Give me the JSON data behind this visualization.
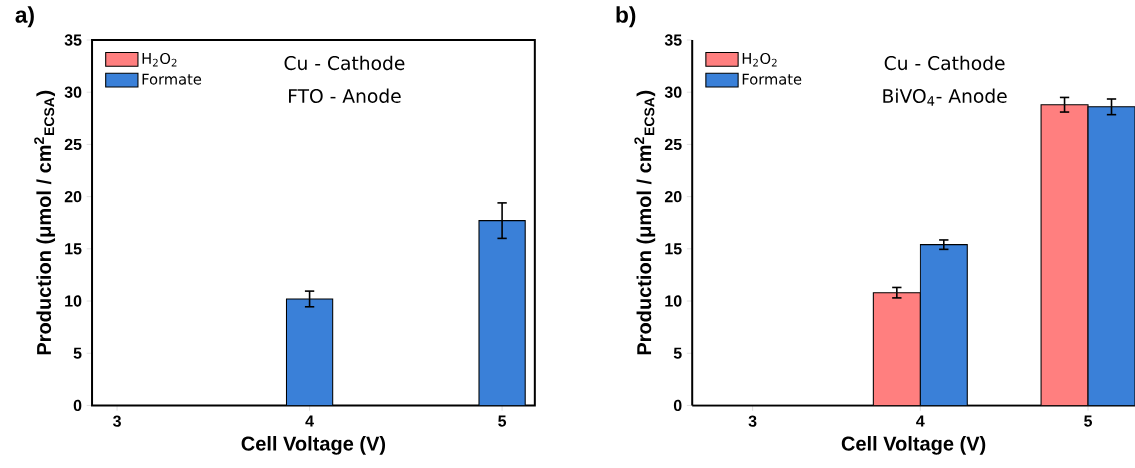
{
  "chart_data": [
    {
      "type": "bar",
      "title": "a)",
      "xlabel": "Cell Voltage (V)",
      "ylabel": "Production (μmol / cm$^{2}$$_{ECSA}$)",
      "categories": [
        "3",
        "4",
        "5"
      ],
      "series": [
        {
          "name": "H$_{2}$O$_{2}$",
          "color": "#ff7f7f",
          "values": [
            null,
            null,
            null
          ]
        },
        {
          "name": "Formate",
          "color": "#3a80d8",
          "values": [
            null,
            10.2,
            17.7
          ],
          "errors": [
            null,
            0.75,
            1.7
          ]
        }
      ],
      "ylim": [
        0,
        35
      ],
      "yticks": [
        0,
        5,
        10,
        15,
        20,
        25,
        30,
        35
      ],
      "legend": "top left",
      "grid": false,
      "annotations": [
        "Cu - Cathode",
        "FTO - Anode"
      ]
    },
    {
      "type": "bar",
      "title": "b)",
      "xlabel": "Cell Voltage (V)",
      "ylabel": "Production (μmol / cm$^{2}$$_{ECSA}$)",
      "categories": [
        "3",
        "4",
        "5"
      ],
      "series": [
        {
          "name": "H$_{2}$O$_{2}$",
          "color": "#ff7f7f",
          "values": [
            null,
            10.8,
            28.8
          ],
          "errors": [
            null,
            0.5,
            0.7
          ]
        },
        {
          "name": "Formate",
          "color": "#3a80d8",
          "values": [
            null,
            15.4,
            28.6
          ],
          "errors": [
            null,
            0.45,
            0.75
          ]
        }
      ],
      "ylim": [
        0,
        35
      ],
      "yticks": [
        0,
        5,
        10,
        15,
        20,
        25,
        30,
        35
      ],
      "legend": "top left",
      "grid": false,
      "annotations": [
        "Cu - Cathode",
        "BiVO$_{4}$- Anode"
      ]
    }
  ]
}
